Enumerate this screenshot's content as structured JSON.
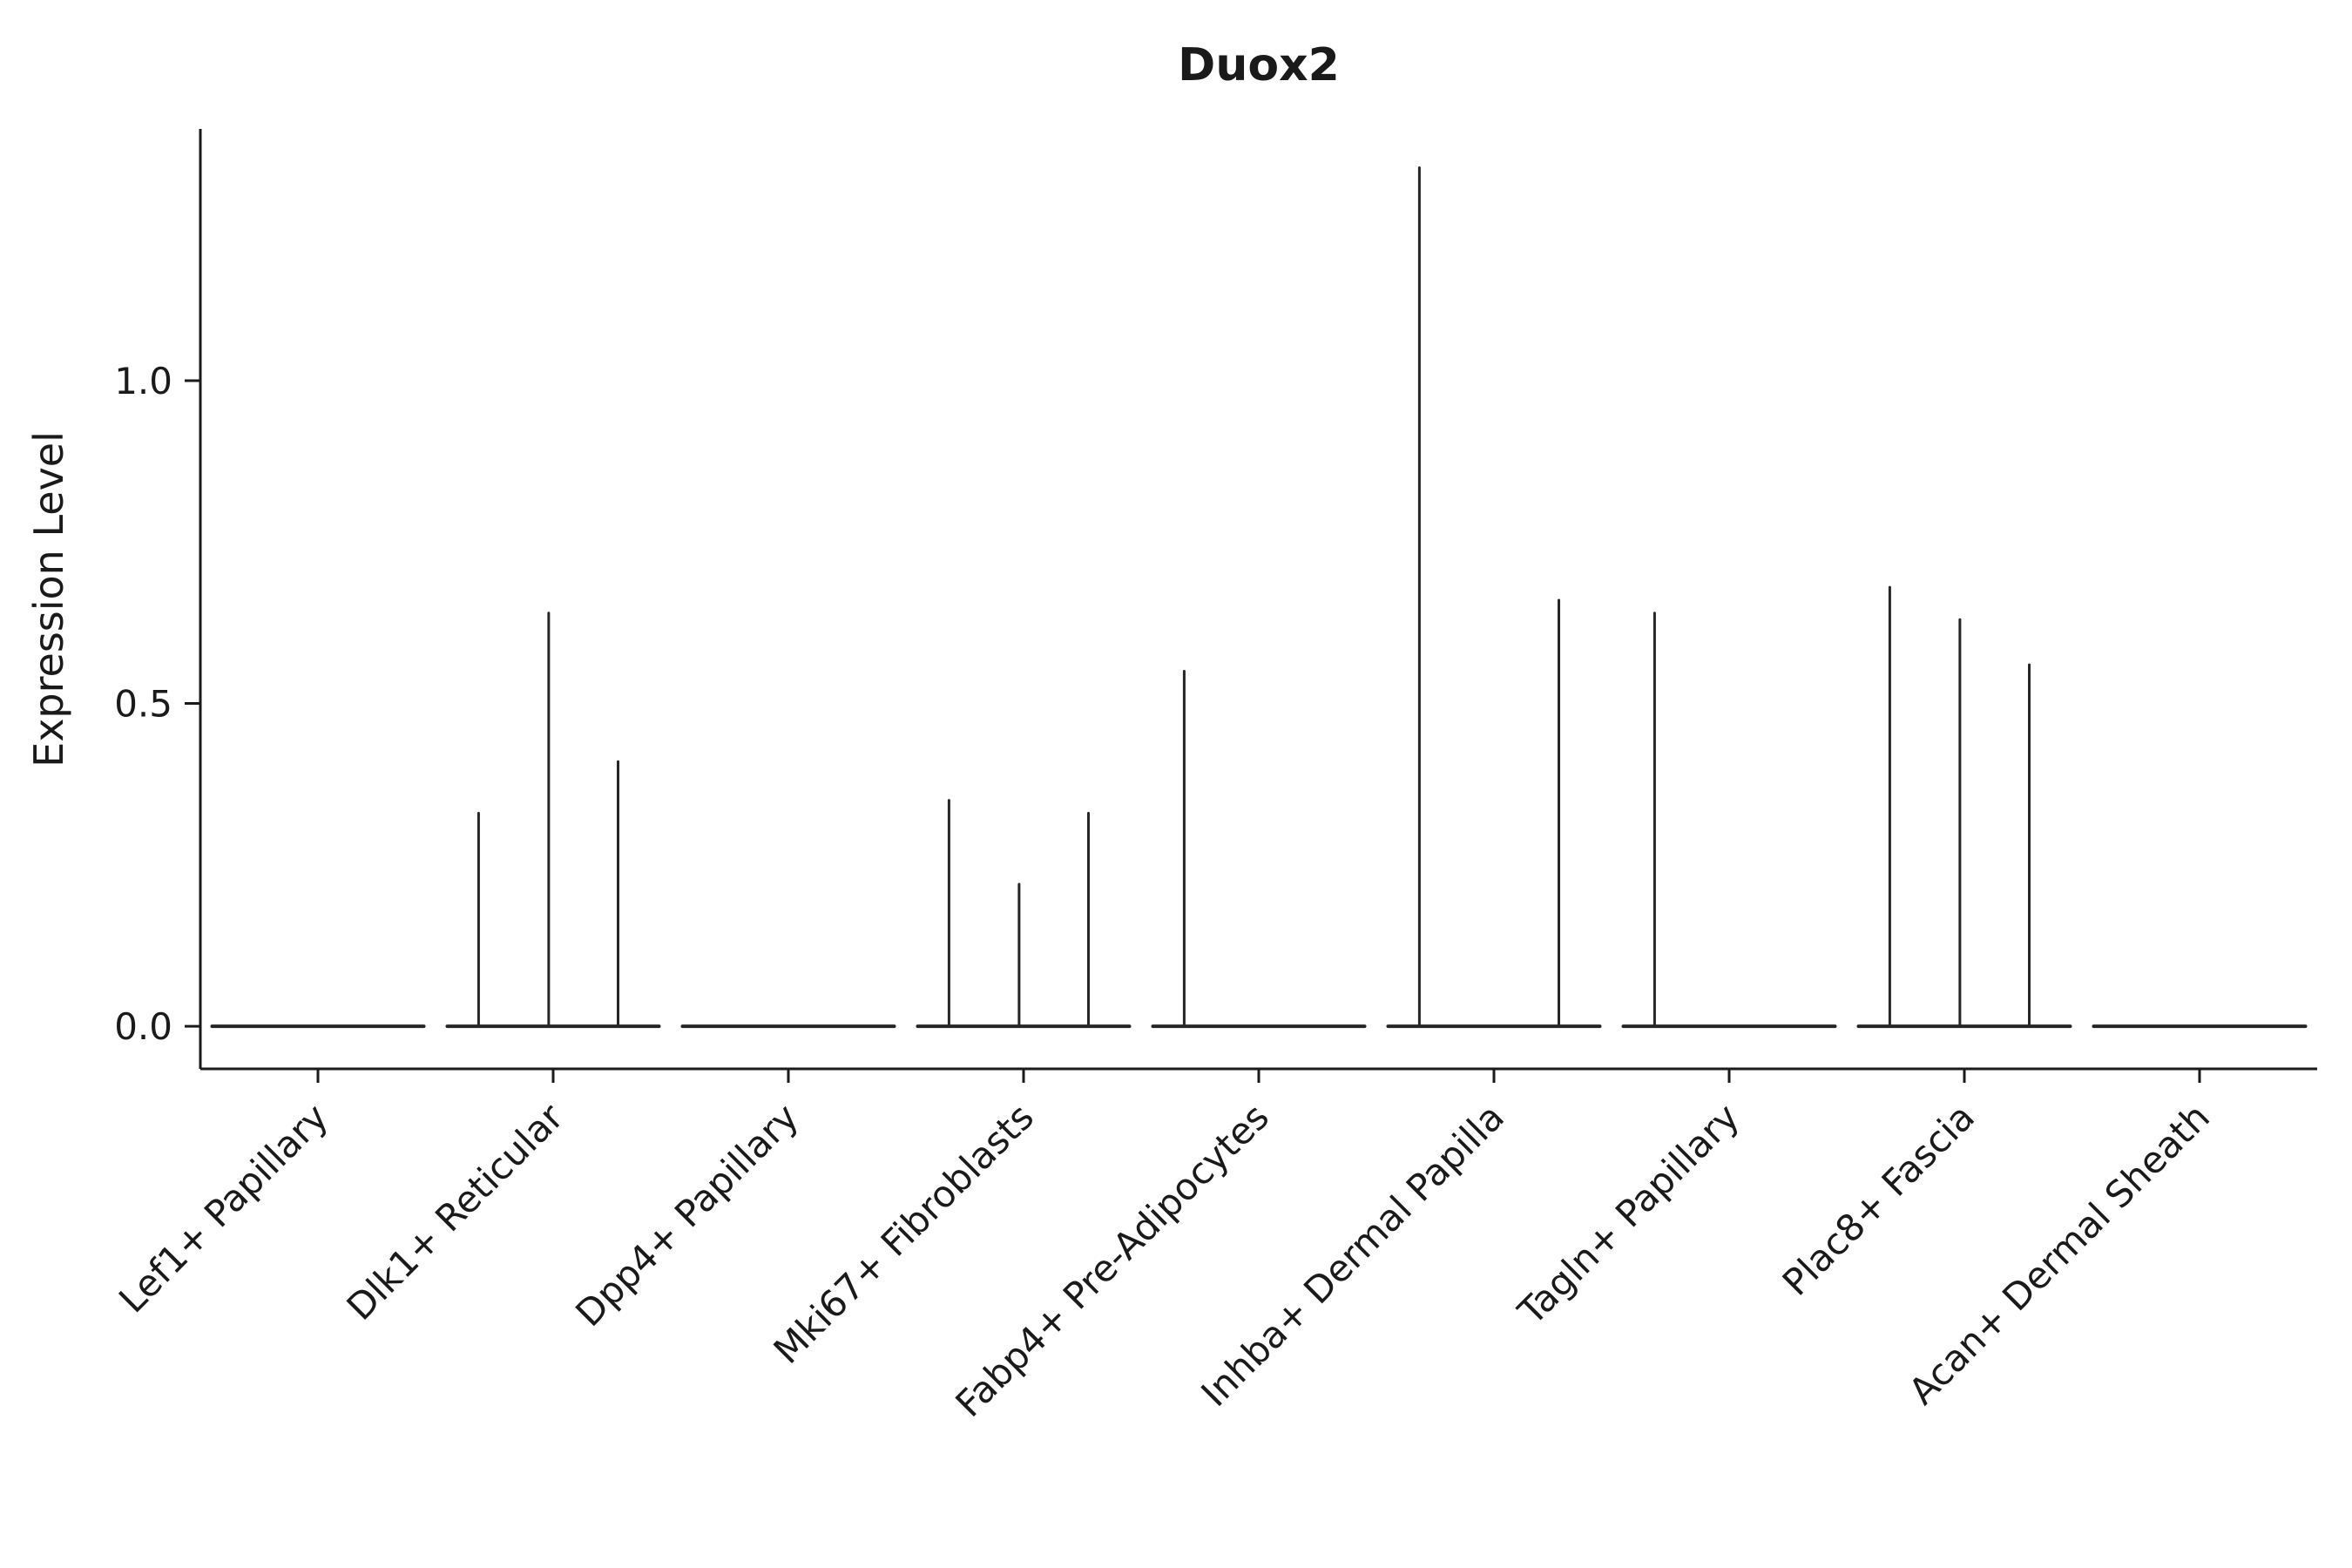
{
  "chart_data": {
    "type": "violin",
    "title": "Duox2",
    "xlabel": "",
    "ylabel": "Expression Level",
    "yticks": [
      0.0,
      0.5,
      1.0
    ],
    "ylim": [
      -0.066,
      1.39
    ],
    "grid": false,
    "legend": null,
    "categories": [
      "Lef1+ Papillary",
      "Dlk1+ Reticular",
      "Dpp4+ Papillary",
      "Mki67+ Fibroblasts",
      "Fabp4+ Pre-Adipocytes",
      "Inhba+ Dermal Papilla",
      "Tagln+ Papillary",
      "Plac8+ Fascia",
      "Acan+ Dermal Sheath"
    ],
    "sub_offsets": [
      -0.317,
      -0.019,
      0.276
    ],
    "spike_heights": [
      [
        null,
        null,
        null
      ],
      [
        0.33,
        0.64,
        0.41
      ],
      [
        null,
        null,
        null
      ],
      [
        0.35,
        0.22,
        0.33
      ],
      [
        0.55,
        null,
        null
      ],
      [
        1.33,
        null,
        0.66
      ],
      [
        0.64,
        null,
        null
      ],
      [
        0.68,
        0.63,
        0.56
      ],
      [
        null,
        null,
        null
      ]
    ],
    "baseline_halfwidth_frac": 0.45,
    "line_color": "#262626",
    "axis_color": "#1a1a1a"
  }
}
